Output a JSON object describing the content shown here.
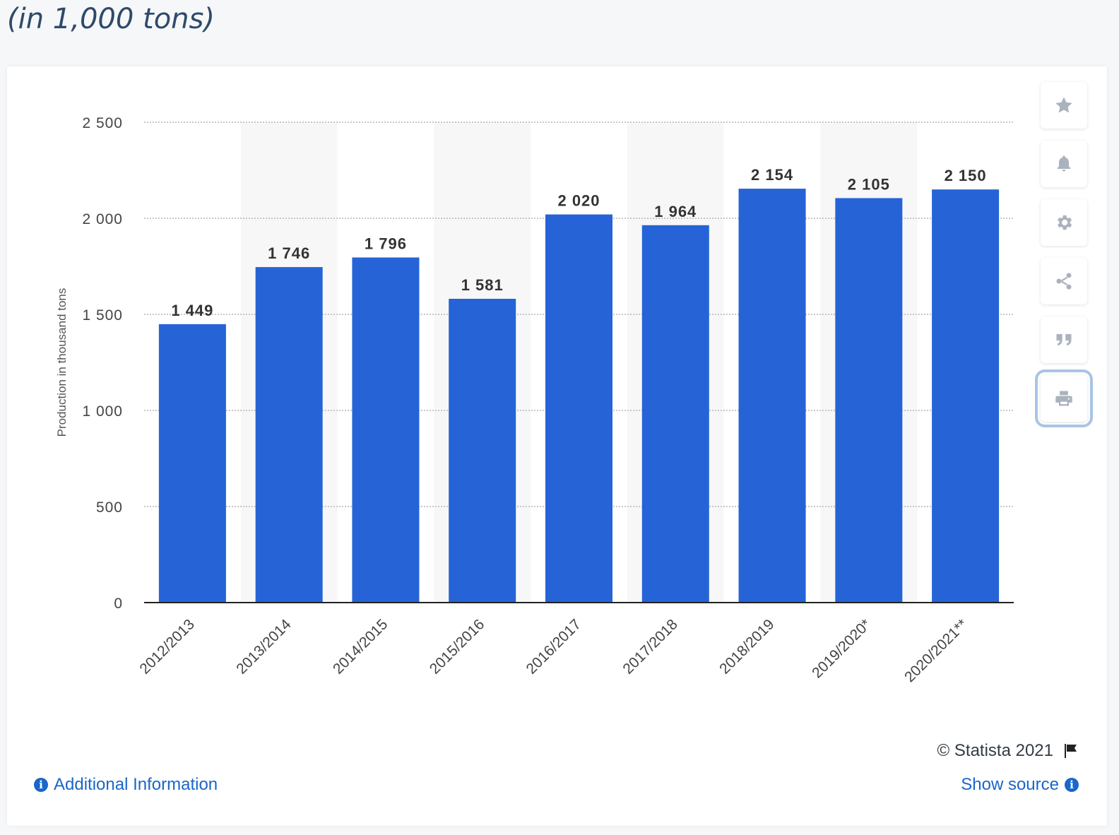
{
  "subtitle": "(in 1,000 tons)",
  "chart_data": {
    "type": "bar",
    "title": "",
    "xlabel": "",
    "ylabel": "Production in thousand tons",
    "categories": [
      "2012/2013",
      "2013/2014",
      "2014/2015",
      "2015/2016",
      "2016/2017",
      "2017/2018",
      "2018/2019",
      "2019/2020*",
      "2020/2021**"
    ],
    "values": [
      1449,
      1746,
      1796,
      1581,
      2020,
      1964,
      2154,
      2105,
      2150
    ],
    "value_labels": [
      "1 449",
      "1 746",
      "1 796",
      "1 581",
      "2 020",
      "1 964",
      "2 154",
      "2 105",
      "2 150"
    ],
    "ylim": [
      0,
      2500
    ],
    "yticks": [
      0,
      500,
      1000,
      1500,
      2000,
      2500
    ],
    "ytick_labels": [
      "0",
      "500",
      "1 000",
      "1 500",
      "2 000",
      "2 500"
    ],
    "grid": true,
    "bar_color": "#2563d6",
    "band_color": "#f7f7f7"
  },
  "toolbar": {
    "items": [
      {
        "name": "star-icon"
      },
      {
        "name": "bell-icon"
      },
      {
        "name": "gear-icon"
      },
      {
        "name": "share-icon"
      },
      {
        "name": "quote-icon"
      },
      {
        "name": "print-icon"
      }
    ]
  },
  "footer": {
    "copyright": "© Statista 2021",
    "additional_info": "Additional Information",
    "show_source": "Show source"
  }
}
